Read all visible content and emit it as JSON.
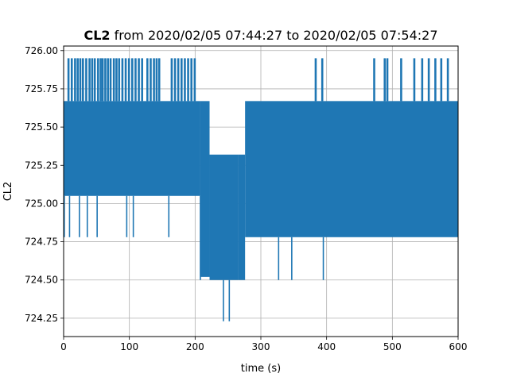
{
  "chart_data": {
    "type": "line",
    "title_bold": "CL2",
    "title_rest": " from 2020/02/05 07:44:27 to 2020/02/05 07:54:27",
    "xlabel": "time (s)",
    "ylabel": "CL2",
    "xlim": [
      0,
      600
    ],
    "ylim": [
      724.13,
      726.03
    ],
    "x_ticks": [
      0,
      100,
      200,
      300,
      400,
      500,
      600
    ],
    "x_tick_labels": [
      "0",
      "100",
      "200",
      "300",
      "400",
      "500",
      "600"
    ],
    "y_ticks": [
      724.25,
      724.5,
      724.75,
      725.0,
      725.25,
      725.5,
      725.75,
      726.0
    ],
    "y_tick_labels": [
      "724.25",
      "724.50",
      "724.75",
      "725.00",
      "725.25",
      "725.50",
      "725.75",
      "726.00"
    ],
    "grid": true,
    "series_color": "#1f77b4",
    "segments": [
      {
        "x_start": 0,
        "x_end": 208,
        "band_low": 725.05,
        "band_high": 725.67
      },
      {
        "x_start": 208,
        "x_end": 222,
        "band_low": 724.52,
        "band_high": 725.67
      },
      {
        "x_start": 222,
        "x_end": 265,
        "band_low": 724.5,
        "band_high": 725.32
      },
      {
        "x_start": 265,
        "x_end": 276,
        "band_low": 724.5,
        "band_high": 725.32
      },
      {
        "x_start": 276,
        "x_end": 600,
        "band_low": 724.78,
        "band_high": 725.67
      }
    ],
    "upper_spikes_x": [
      8,
      13,
      18,
      22,
      26,
      30,
      35,
      40,
      44,
      48,
      53,
      57,
      60,
      64,
      68,
      72,
      77,
      81,
      85,
      90,
      95,
      100,
      105,
      110,
      115,
      120,
      128,
      133,
      138,
      142,
      146,
      165,
      170,
      175,
      180,
      185,
      190,
      195,
      200,
      384,
      394,
      473,
      489,
      493,
      514,
      534,
      546,
      556,
      566,
      575,
      585
    ],
    "upper_spike_value": 725.95,
    "lower_spikes_x": [
      1,
      9,
      24,
      36,
      51,
      96,
      106,
      160,
      208,
      327,
      347,
      395,
      527,
      543,
      552
    ],
    "lower_spike_values": [
      724.78,
      724.78,
      724.78,
      724.78,
      724.78,
      724.78,
      724.78,
      724.78,
      724.5,
      724.5,
      724.5,
      724.5,
      724.78,
      724.78,
      724.78
    ],
    "deep_spikes_x": [
      243,
      252
    ],
    "deep_spike_value": 724.23
  }
}
